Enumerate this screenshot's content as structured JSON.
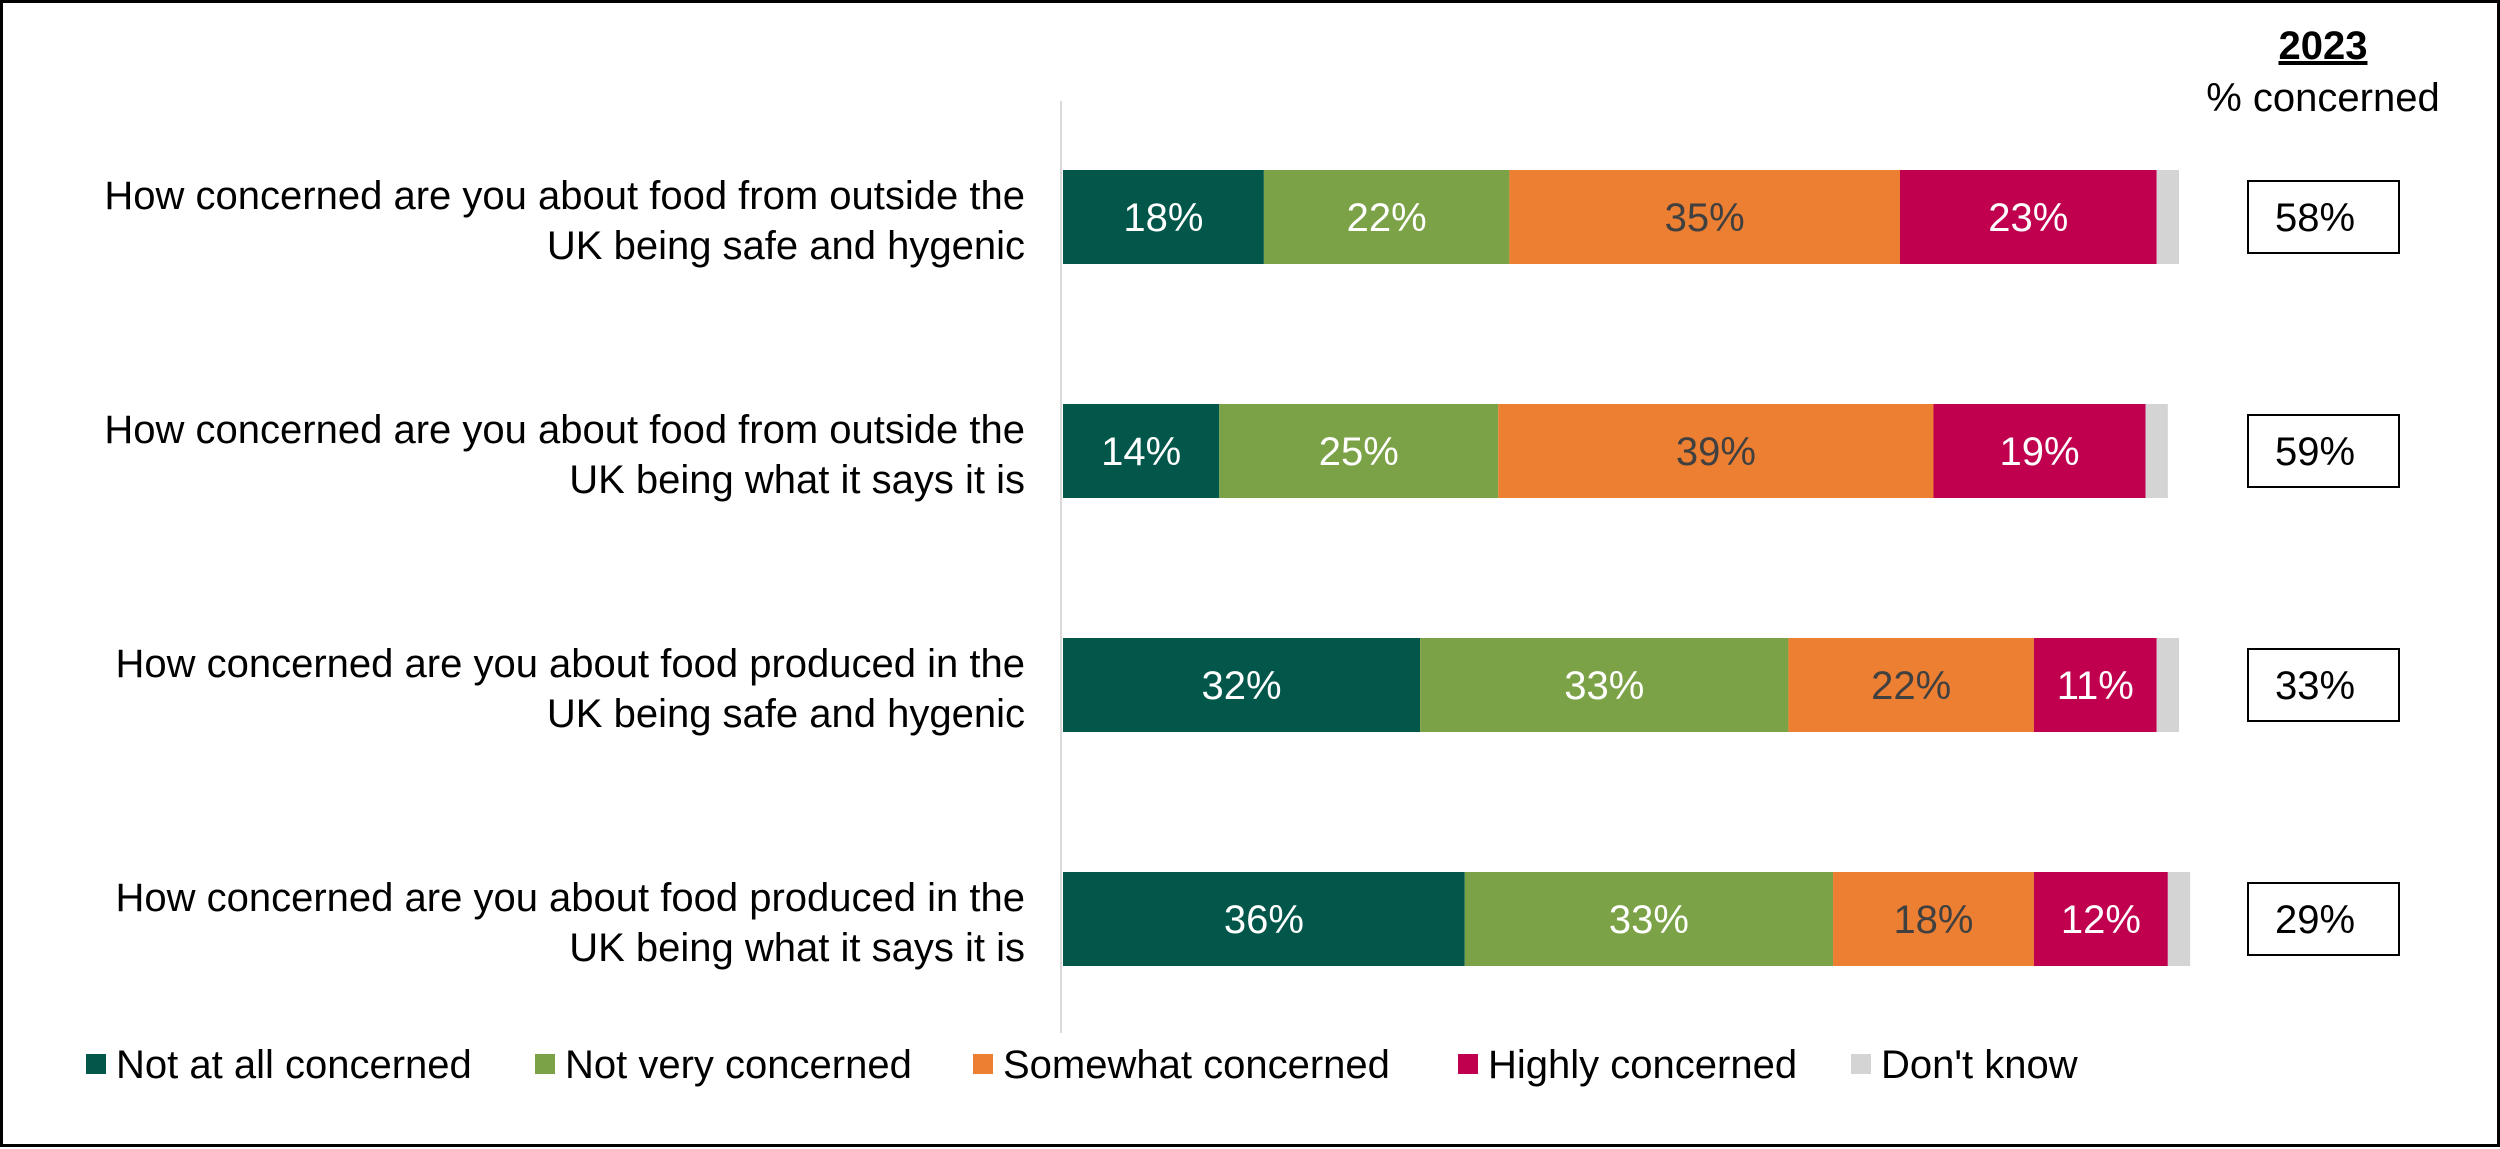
{
  "chart_data": {
    "type": "bar",
    "orientation": "horizontal",
    "stacked": true,
    "title": "",
    "xlabel": "",
    "ylabel": "",
    "xlim": [
      0,
      100
    ],
    "grid": false,
    "categories": [
      [
        "How concerned are you about food from outside the",
        "UK being safe and hygenic"
      ],
      [
        "How concerned are you about food from outside the",
        "UK being what it says it is"
      ],
      [
        "How concerned are you about food produced in the",
        "UK being safe and hygenic"
      ],
      [
        "How concerned are you about food produced in the",
        "UK being what it says it is"
      ]
    ],
    "series": [
      {
        "name": "Not at all concerned",
        "color": "#02574A",
        "label_color": "#ffffff",
        "values": [
          18,
          14,
          32,
          36
        ]
      },
      {
        "name": "Not very concerned",
        "color": "#7BA246",
        "label_color": "#ffffff",
        "values": [
          22,
          25,
          33,
          33
        ]
      },
      {
        "name": "Somewhat concerned",
        "color": "#ED7F32",
        "label_color": "#404040",
        "values": [
          35,
          39,
          22,
          18
        ]
      },
      {
        "name": "Highly concerned",
        "color": "#C0004E",
        "label_color": "#ffffff",
        "values": [
          23,
          19,
          11,
          12
        ]
      },
      {
        "name": "Don't know",
        "color": "#D4D4D4",
        "label_color": "#404040",
        "values": [
          2,
          2,
          2,
          2
        ]
      }
    ],
    "value_suffix": "%",
    "label_min_value": 5,
    "side_column": {
      "heading": "2023",
      "subheading": "% concerned",
      "values": [
        "58%",
        "59%",
        "33%",
        "29%"
      ]
    },
    "legend_position": "bottom"
  }
}
